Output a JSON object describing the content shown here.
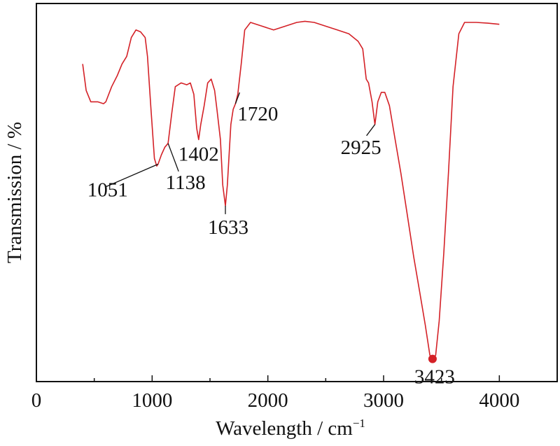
{
  "chart_data": {
    "type": "line",
    "title": "",
    "xlabel": "Wavelength / cm",
    "xlabel_superscript": "−1",
    "ylabel": "Transmission / %",
    "xlim": [
      0,
      4500
    ],
    "ylim": [
      0,
      100
    ],
    "x_ticks": [
      0,
      1000,
      2000,
      3000,
      4000
    ],
    "x_tick_labels": [
      "0",
      "1000",
      "2000",
      "3000",
      "4000"
    ],
    "y_ticks_shown": false,
    "grid": false,
    "legend": "none",
    "line_color": "#d42127",
    "series": [
      {
        "values_xy": [
          [
            400,
            84
          ],
          [
            430,
            77
          ],
          [
            470,
            74
          ],
          [
            530,
            74
          ],
          [
            580,
            73.5
          ],
          [
            600,
            74
          ],
          [
            650,
            78
          ],
          [
            700,
            81
          ],
          [
            740,
            84
          ],
          [
            780,
            86
          ],
          [
            820,
            91
          ],
          [
            860,
            93
          ],
          [
            900,
            92.5
          ],
          [
            940,
            91
          ],
          [
            960,
            86
          ],
          [
            990,
            72
          ],
          [
            1020,
            59
          ],
          [
            1040,
            57
          ],
          [
            1051,
            57.5
          ],
          [
            1080,
            60
          ],
          [
            1110,
            62
          ],
          [
            1138,
            63
          ],
          [
            1170,
            71
          ],
          [
            1200,
            78
          ],
          [
            1250,
            79
          ],
          [
            1300,
            78.5
          ],
          [
            1330,
            79
          ],
          [
            1360,
            76
          ],
          [
            1385,
            67
          ],
          [
            1402,
            64
          ],
          [
            1420,
            68
          ],
          [
            1450,
            73
          ],
          [
            1480,
            79
          ],
          [
            1510,
            80
          ],
          [
            1540,
            77
          ],
          [
            1560,
            72
          ],
          [
            1590,
            64
          ],
          [
            1610,
            52
          ],
          [
            1633,
            46.5
          ],
          [
            1650,
            52
          ],
          [
            1680,
            68
          ],
          [
            1700,
            72
          ],
          [
            1720,
            73.5
          ],
          [
            1740,
            76
          ],
          [
            1770,
            84
          ],
          [
            1800,
            93
          ],
          [
            1850,
            95
          ],
          [
            1950,
            94
          ],
          [
            2050,
            93
          ],
          [
            2150,
            94
          ],
          [
            2250,
            95
          ],
          [
            2320,
            95.3
          ],
          [
            2400,
            95
          ],
          [
            2500,
            94
          ],
          [
            2600,
            93
          ],
          [
            2700,
            92
          ],
          [
            2780,
            90
          ],
          [
            2820,
            88
          ],
          [
            2850,
            80
          ],
          [
            2870,
            79
          ],
          [
            2900,
            74
          ],
          [
            2925,
            68
          ],
          [
            2950,
            74
          ],
          [
            2980,
            76.5
          ],
          [
            3010,
            76.5
          ],
          [
            3050,
            73
          ],
          [
            3100,
            64
          ],
          [
            3150,
            55
          ],
          [
            3200,
            45
          ],
          [
            3260,
            33
          ],
          [
            3310,
            24
          ],
          [
            3360,
            15
          ],
          [
            3400,
            7
          ],
          [
            3423,
            6
          ],
          [
            3450,
            7
          ],
          [
            3480,
            16
          ],
          [
            3520,
            34
          ],
          [
            3560,
            55
          ],
          [
            3600,
            78
          ],
          [
            3650,
            92
          ],
          [
            3700,
            95
          ],
          [
            3800,
            95
          ],
          [
            3900,
            94.8
          ],
          [
            4000,
            94.5
          ]
        ]
      }
    ],
    "annotations": [
      {
        "label": "1051",
        "x": 1051
      },
      {
        "label": "1138",
        "x": 1138
      },
      {
        "label": "1402",
        "x": 1402
      },
      {
        "label": "1633",
        "x": 1633
      },
      {
        "label": "1720",
        "x": 1720
      },
      {
        "label": "2925",
        "x": 2925
      },
      {
        "label": "3423",
        "x": 3423,
        "marker": "dot"
      }
    ]
  }
}
